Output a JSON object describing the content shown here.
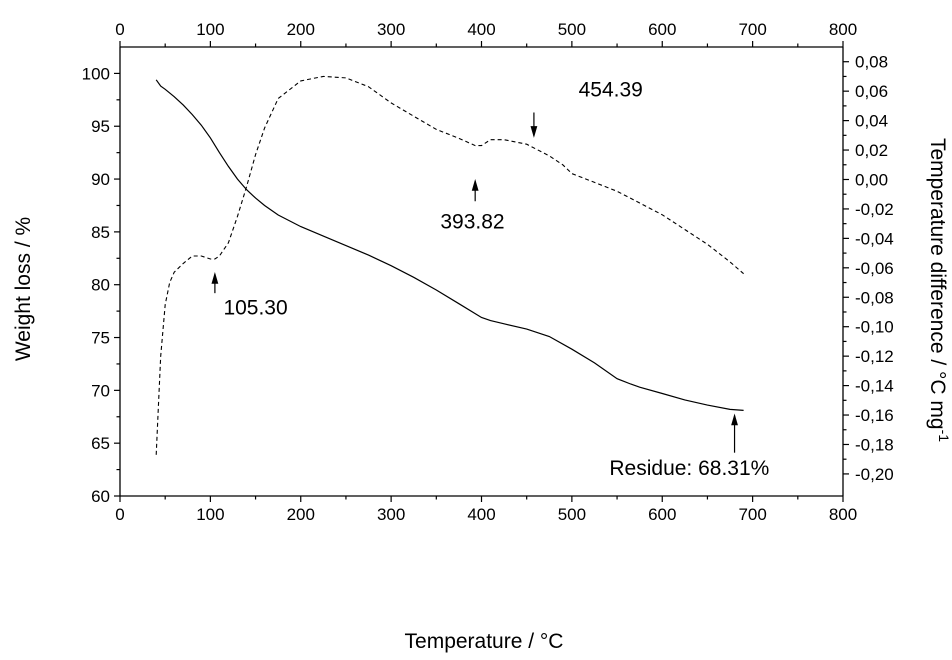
{
  "chart_data": {
    "type": "line",
    "xlabel": "Temperature / °C",
    "ylabel_left": "Weight loss / %",
    "ylabel_right_main": "Temperature difference / °C mg",
    "ylabel_right_sup": "-1",
    "xlim": [
      0,
      800
    ],
    "ylim_left": [
      60,
      102.5
    ],
    "ylim_right": [
      -0.215,
      0.09
    ],
    "x_ticks": [
      0,
      100,
      200,
      300,
      400,
      500,
      600,
      700,
      800
    ],
    "x_tick_labels": [
      "0",
      "100",
      "200",
      "300",
      "400",
      "500",
      "600",
      "700",
      "800"
    ],
    "y_left_ticks": [
      60,
      65,
      70,
      75,
      80,
      85,
      90,
      95,
      100
    ],
    "y_left_tick_labels": [
      "60",
      "65",
      "70",
      "75",
      "80",
      "85",
      "90",
      "95",
      "100"
    ],
    "y_right_ticks": [
      -0.2,
      -0.18,
      -0.16,
      -0.14,
      -0.12,
      -0.1,
      -0.08,
      -0.06,
      -0.04,
      -0.02,
      0.0,
      0.02,
      0.04,
      0.06,
      0.08
    ],
    "y_right_tick_labels": [
      "-0,20",
      "-0,18",
      "-0,16",
      "-0,14",
      "-0,12",
      "-0,10",
      "-0,08",
      "-0,06",
      "-0,04",
      "-0,02",
      "0,00",
      "0,02",
      "0,04",
      "0,06",
      "0,08"
    ],
    "grid": false,
    "series": [
      {
        "axis": "left",
        "style": "solid",
        "x": [
          40,
          45,
          50,
          60,
          70,
          80,
          90,
          100,
          110,
          120,
          130,
          140,
          150,
          160,
          175,
          200,
          225,
          250,
          275,
          300,
          325,
          350,
          375,
          400,
          410,
          425,
          450,
          475,
          500,
          525,
          550,
          565,
          575,
          600,
          625,
          650,
          675,
          690
        ],
        "y": [
          99.4,
          98.8,
          98.5,
          97.8,
          97.0,
          96.1,
          95.1,
          93.9,
          92.5,
          91.2,
          90.0,
          89.0,
          88.2,
          87.5,
          86.6,
          85.5,
          84.6,
          83.7,
          82.8,
          81.8,
          80.7,
          79.5,
          78.2,
          76.9,
          76.6,
          76.3,
          75.8,
          75.1,
          73.9,
          72.6,
          71.1,
          70.6,
          70.3,
          69.7,
          69.1,
          68.6,
          68.2,
          68.1
        ]
      },
      {
        "axis": "right",
        "style": "dashed",
        "x": [
          40,
          42,
          45,
          50,
          55,
          60,
          70,
          80,
          90,
          100,
          105,
          110,
          120,
          130,
          140,
          150,
          160,
          175,
          200,
          225,
          250,
          275,
          300,
          325,
          350,
          375,
          393,
          400,
          410,
          425,
          450,
          475,
          490,
          500,
          525,
          550,
          575,
          600,
          625,
          650,
          675,
          690
        ],
        "y": [
          -0.187,
          -0.16,
          -0.12,
          -0.085,
          -0.07,
          -0.063,
          -0.057,
          -0.052,
          -0.052,
          -0.054,
          -0.054,
          -0.052,
          -0.043,
          -0.025,
          -0.005,
          0.017,
          0.035,
          0.055,
          0.067,
          0.07,
          0.069,
          0.063,
          0.052,
          0.043,
          0.034,
          0.028,
          0.023,
          0.023,
          0.027,
          0.027,
          0.024,
          0.016,
          0.01,
          0.004,
          -0.002,
          -0.008,
          -0.016,
          -0.024,
          -0.034,
          -0.044,
          -0.056,
          -0.064
        ]
      }
    ],
    "annotations": [
      {
        "text": "105.30",
        "x": 150,
        "y_left": 77.2
      },
      {
        "text": "393.82",
        "x": 390,
        "y_left": 85.3
      },
      {
        "text": "454.39",
        "x": 543,
        "y_left": 97.8
      },
      {
        "text": "Residue: 68.31%",
        "x": 630,
        "y_left": 62.0
      }
    ],
    "arrows": [
      {
        "x": 105,
        "y_left_tail": 79.2,
        "y_left_head": 81.0,
        "direction": "up"
      },
      {
        "x": 393,
        "y_left_tail": 87.9,
        "y_left_head": 89.8,
        "direction": "up"
      },
      {
        "x": 458,
        "y_left_tail": 96.3,
        "y_left_head": 94.1,
        "direction": "down"
      },
      {
        "x": 680,
        "y_left_tail": 64.1,
        "y_left_head": 67.6,
        "direction": "up"
      }
    ]
  }
}
